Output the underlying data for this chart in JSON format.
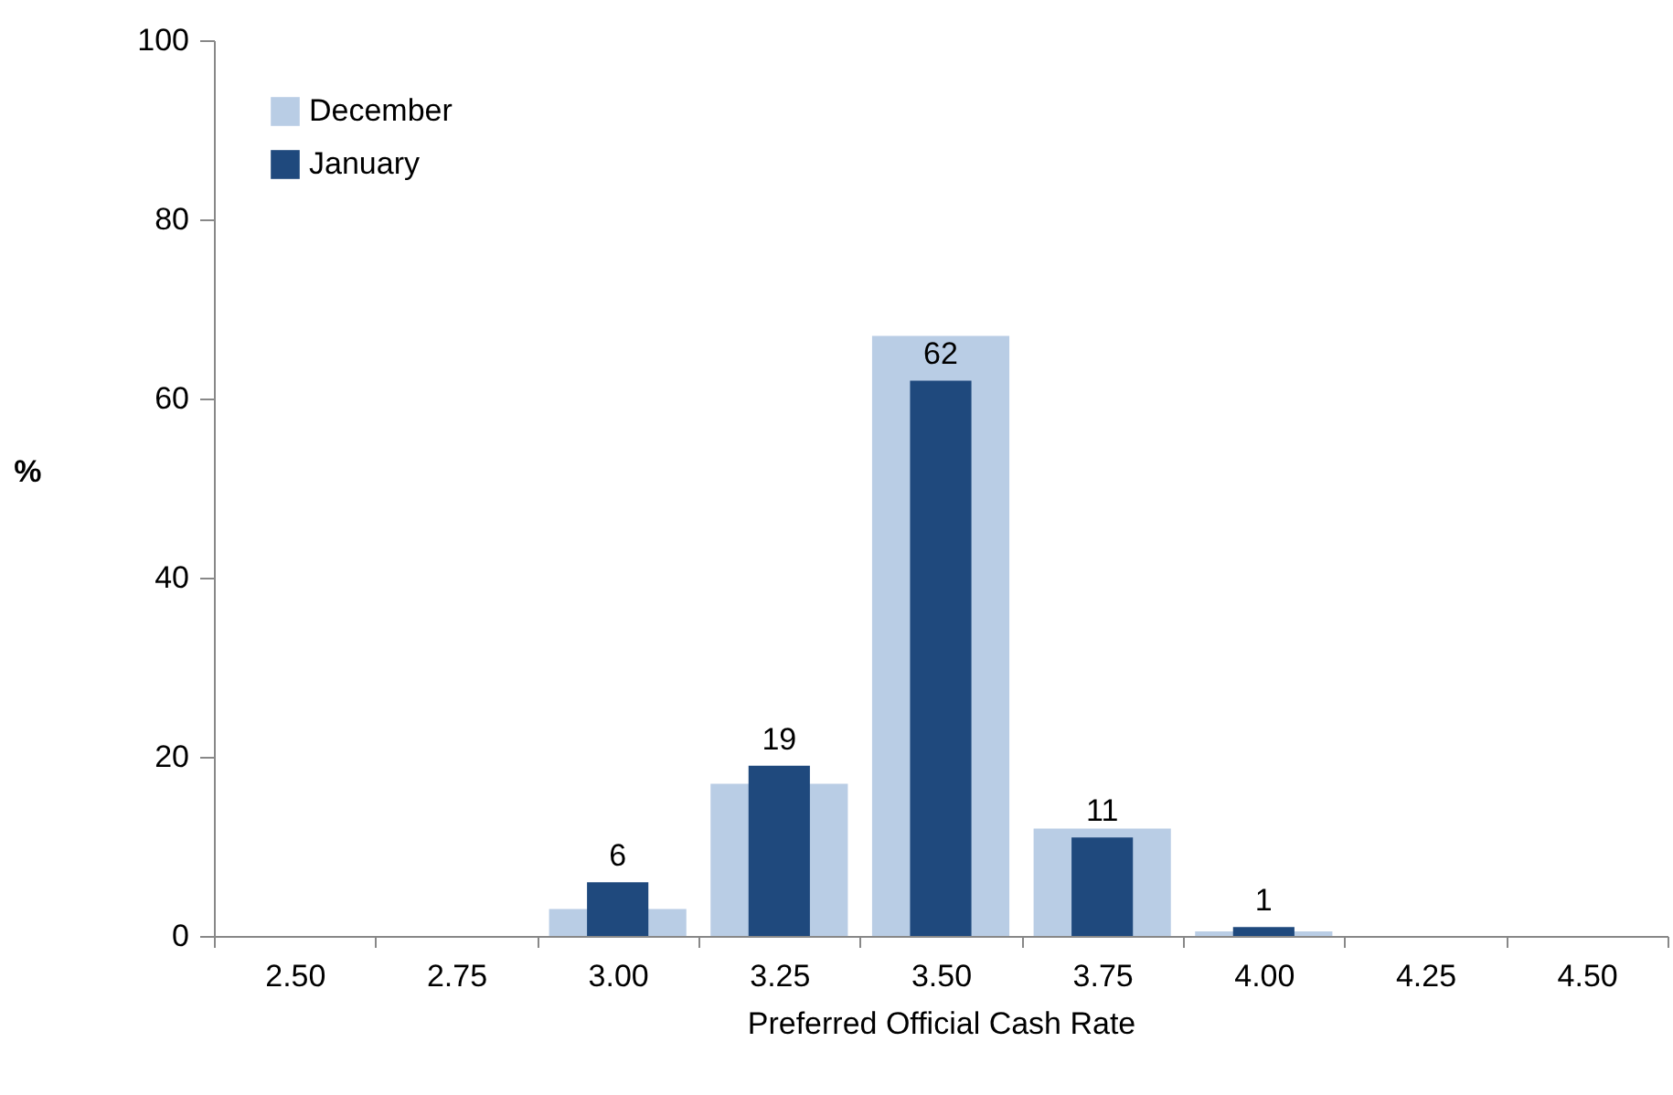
{
  "chart_data": {
    "type": "bar",
    "xlabel": "Preferred Official Cash Rate",
    "ylabel": "%",
    "categories": [
      "2.50",
      "2.75",
      "3.00",
      "3.25",
      "3.50",
      "3.75",
      "4.00",
      "4.25",
      "4.50"
    ],
    "series": [
      {
        "name": "December",
        "color": "#b9cde5",
        "values": [
          0,
          0,
          3,
          17,
          67,
          12,
          0.5,
          0,
          0
        ]
      },
      {
        "name": "January",
        "color": "#1f497d",
        "values": [
          0,
          0,
          6,
          19,
          62,
          11,
          1,
          0,
          0
        ],
        "value_labels": [
          null,
          null,
          "6",
          "19",
          "62",
          "11",
          "1",
          null,
          null
        ]
      }
    ],
    "ylim": [
      0,
      100
    ],
    "yticks": [
      0,
      20,
      40,
      60,
      80,
      100
    ],
    "legend": "top left"
  }
}
